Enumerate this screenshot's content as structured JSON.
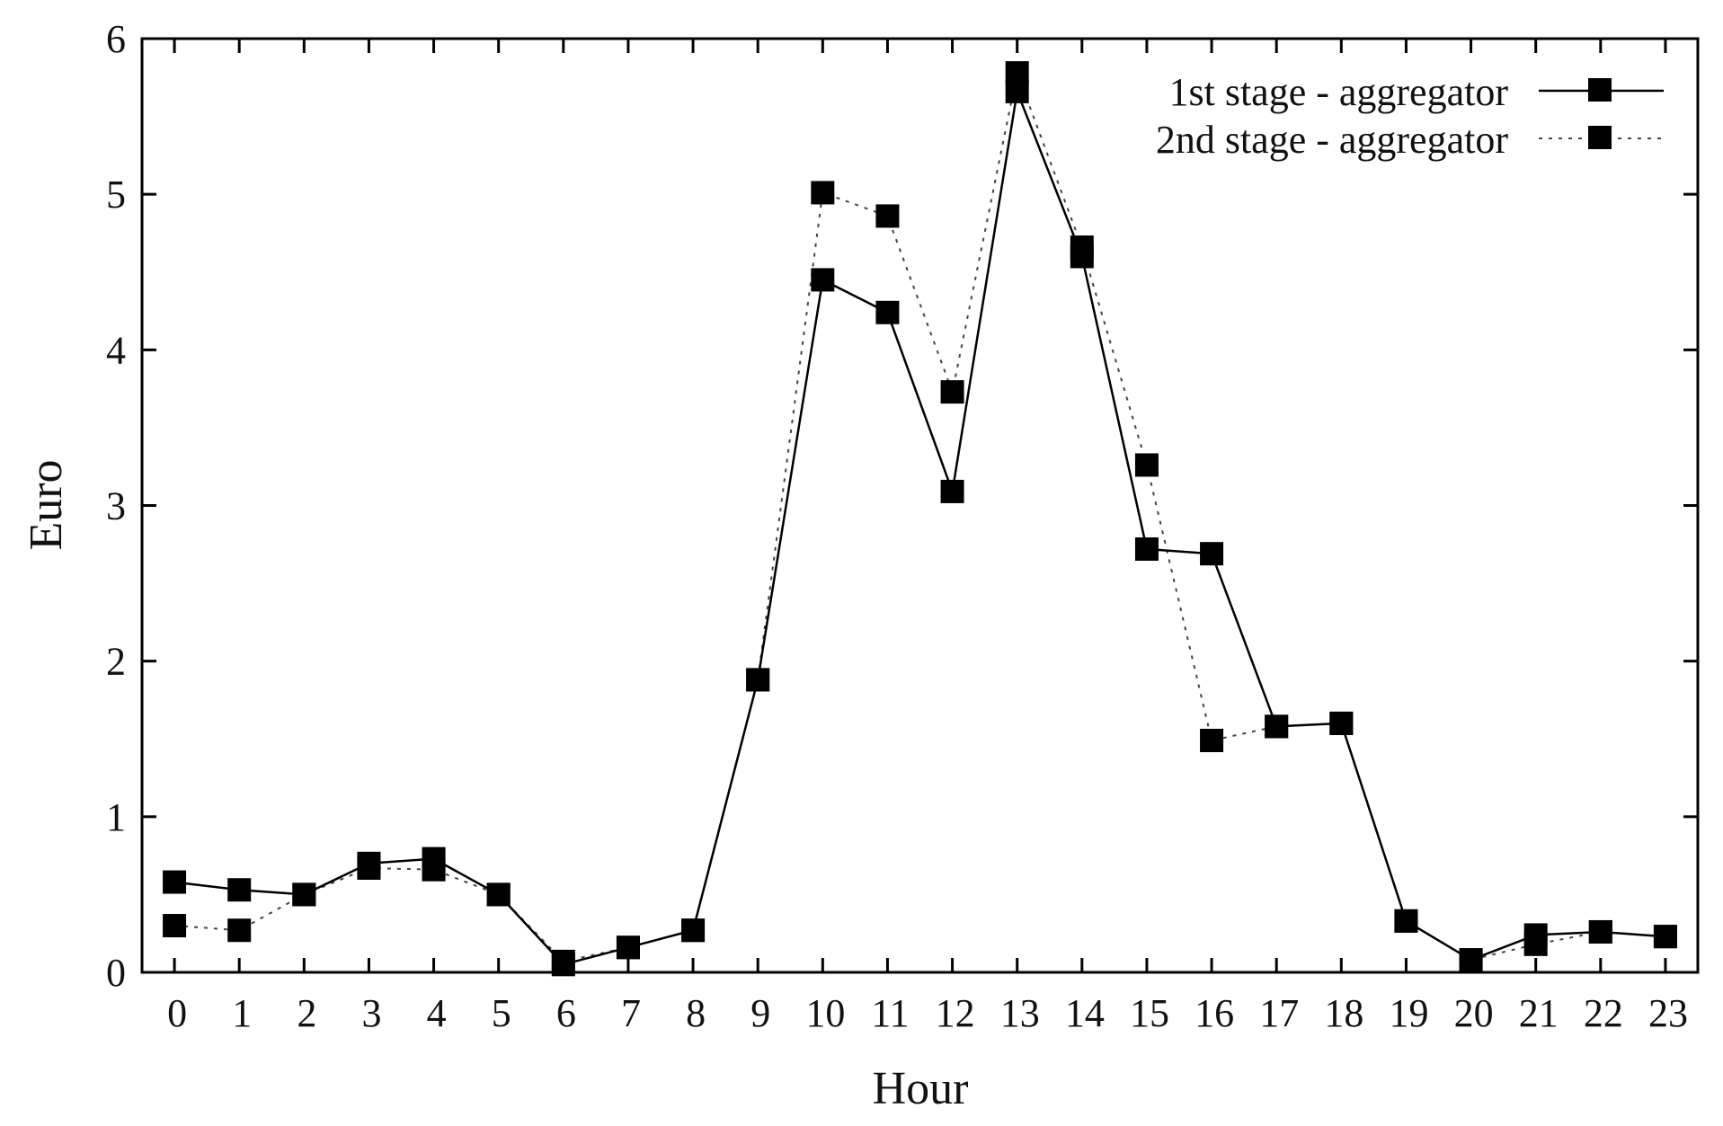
{
  "chart_data": {
    "type": "line",
    "title": "",
    "xlabel": "Hour",
    "ylabel": "Euro",
    "xlim": [
      -0.5,
      23.5
    ],
    "ylim": [
      0,
      6
    ],
    "x_ticks": [
      "0",
      "1",
      "2",
      "3",
      "4",
      "5",
      "6",
      "7",
      "8",
      "9",
      "10",
      "11",
      "12",
      "13",
      "14",
      "15",
      "16",
      "17",
      "18",
      "19",
      "20",
      "21",
      "22",
      "23"
    ],
    "y_ticks": [
      "0",
      "1",
      "2",
      "3",
      "4",
      "5",
      "6"
    ],
    "grid": false,
    "legend_position": "top-right",
    "x": [
      0,
      1,
      2,
      3,
      4,
      5,
      6,
      7,
      8,
      9,
      10,
      11,
      12,
      13,
      14,
      15,
      16,
      17,
      18,
      19,
      20,
      21,
      22,
      23
    ],
    "series": [
      {
        "name": "1st stage - aggregator",
        "line_style": "solid",
        "marker": "square",
        "color": "#000000",
        "values": [
          0.58,
          0.53,
          0.5,
          0.7,
          0.73,
          0.5,
          0.05,
          0.16,
          0.27,
          1.88,
          4.45,
          4.24,
          3.09,
          5.66,
          4.6,
          2.72,
          2.69,
          1.58,
          1.6,
          0.33,
          0.08,
          0.24,
          0.26,
          0.23
        ]
      },
      {
        "name": "2nd stage - aggregator",
        "line_style": "dotted",
        "marker": "square",
        "color": "#000000",
        "values": [
          0.3,
          0.27,
          0.5,
          0.67,
          0.66,
          0.5,
          0.07,
          0.16,
          0.27,
          1.88,
          5.01,
          4.86,
          3.73,
          5.78,
          4.66,
          3.26,
          1.49,
          1.58,
          1.6,
          0.33,
          0.08,
          0.18,
          0.26,
          0.23
        ]
      }
    ]
  }
}
